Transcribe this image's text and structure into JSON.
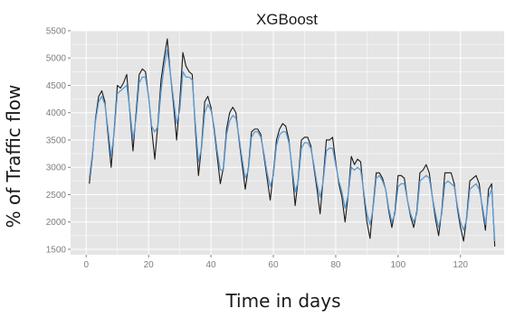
{
  "chart_data": {
    "type": "line",
    "title": "XGBoost",
    "xlabel": "Time in days",
    "ylabel": "% of Traffic flow",
    "xlim": [
      -5,
      134
    ],
    "ylim": [
      1400,
      5500
    ],
    "x_ticks": [
      0,
      20,
      40,
      60,
      80,
      100,
      120
    ],
    "y_ticks": [
      1500,
      2000,
      2500,
      3000,
      3500,
      4000,
      4500,
      5000,
      5500
    ],
    "grid": true,
    "legend": "none",
    "colors": {
      "actual": "#1a1a1a",
      "predicted": "#5b9bd5",
      "panel": "#e5e5e5",
      "grid": "#ffffff"
    },
    "x": [
      1,
      2,
      3,
      4,
      5,
      6,
      7,
      8,
      9,
      10,
      11,
      12,
      13,
      14,
      15,
      16,
      17,
      18,
      19,
      20,
      21,
      22,
      23,
      24,
      25,
      26,
      27,
      28,
      29,
      30,
      31,
      32,
      33,
      34,
      35,
      36,
      37,
      38,
      39,
      40,
      41,
      42,
      43,
      44,
      45,
      46,
      47,
      48,
      49,
      50,
      51,
      52,
      53,
      54,
      55,
      56,
      57,
      58,
      59,
      60,
      61,
      62,
      63,
      64,
      65,
      66,
      67,
      68,
      69,
      70,
      71,
      72,
      73,
      74,
      75,
      76,
      77,
      78,
      79,
      80,
      81,
      82,
      83,
      84,
      85,
      86,
      87,
      88,
      89,
      90,
      91,
      92,
      93,
      94,
      95,
      96,
      97,
      98,
      99,
      100,
      101,
      102,
      103,
      104,
      105,
      106,
      107,
      108,
      109,
      110,
      111,
      112,
      113,
      114,
      115,
      116,
      117,
      118,
      119,
      120,
      121,
      122,
      123,
      124,
      125,
      126,
      127,
      128,
      129,
      130,
      131
    ],
    "series": [
      {
        "values": [
          2700,
          3200,
          3900,
          4300,
          4400,
          4200,
          3600,
          3000,
          3700,
          4500,
          4450,
          4550,
          4700,
          4000,
          3300,
          4000,
          4700,
          4800,
          4750,
          4300,
          3700,
          3150,
          3800,
          4600,
          5000,
          5350,
          4700,
          4150,
          3500,
          4200,
          5100,
          4850,
          4750,
          4700,
          3700,
          2850,
          3400,
          4200,
          4300,
          4100,
          3700,
          3200,
          2700,
          3000,
          3700,
          4000,
          4100,
          4000,
          3500,
          3050,
          2600,
          3000,
          3650,
          3700,
          3700,
          3600,
          3200,
          2800,
          2400,
          2900,
          3500,
          3700,
          3800,
          3750,
          3500,
          2950,
          2300,
          2800,
          3500,
          3550,
          3550,
          3400,
          3000,
          2600,
          2150,
          2800,
          3500,
          3500,
          3550,
          3100,
          2700,
          2450,
          2000,
          2500,
          3200,
          3050,
          3150,
          3100,
          2500,
          2000,
          1700,
          2300,
          2900,
          2900,
          2800,
          2600,
          2200,
          1900,
          2200,
          2850,
          2850,
          2800,
          2400,
          2100,
          1900,
          2200,
          2900,
          2950,
          3050,
          2900,
          2450,
          2050,
          1750,
          2200,
          2900,
          2900,
          2900,
          2700,
          2250,
          1900,
          1650,
          2100,
          2750,
          2800,
          2850,
          2700,
          2250,
          1850,
          2600,
          2700,
          1550
        ]
      },
      {
        "values": [
          2800,
          3250,
          3850,
          4200,
          4300,
          4150,
          3700,
          3200,
          3650,
          4350,
          4400,
          4450,
          4500,
          4050,
          3500,
          3900,
          4550,
          4650,
          4650,
          4300,
          3750,
          3650,
          3750,
          4400,
          4850,
          5150,
          4700,
          4250,
          3800,
          4050,
          4750,
          4650,
          4650,
          4600,
          3800,
          3100,
          3350,
          4000,
          4150,
          4050,
          3750,
          3300,
          2950,
          2950,
          3600,
          3850,
          3950,
          3900,
          3550,
          3150,
          2800,
          2950,
          3550,
          3650,
          3650,
          3550,
          3250,
          2900,
          2650,
          2850,
          3400,
          3600,
          3650,
          3650,
          3450,
          3000,
          2550,
          2750,
          3350,
          3450,
          3450,
          3350,
          3050,
          2700,
          2450,
          2750,
          3300,
          3350,
          3350,
          3050,
          2750,
          2550,
          2250,
          2500,
          3000,
          2950,
          3000,
          2950,
          2550,
          2150,
          1950,
          2250,
          2800,
          2850,
          2750,
          2600,
          2250,
          2000,
          2150,
          2650,
          2700,
          2700,
          2400,
          2150,
          2000,
          2150,
          2750,
          2800,
          2850,
          2800,
          2450,
          2150,
          1900,
          2150,
          2700,
          2750,
          2700,
          2650,
          2300,
          2000,
          1850,
          2050,
          2600,
          2650,
          2700,
          2600,
          2300,
          1950,
          2450,
          2600,
          1650
        ]
      }
    ]
  }
}
